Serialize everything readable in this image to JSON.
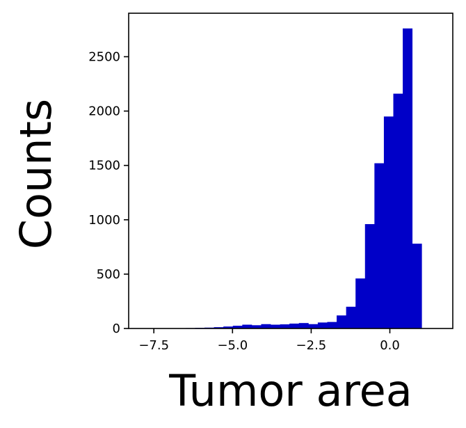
{
  "chart_data": {
    "type": "bar",
    "title": "",
    "xlabel": "Tumor area",
    "ylabel": "Counts",
    "xlim": [
      -8.3,
      2.0
    ],
    "ylim": [
      0,
      2900
    ],
    "x_ticks": [
      -7.5,
      -5.0,
      -2.5,
      0.0
    ],
    "x_tick_labels": [
      "−7.5",
      "−5.0",
      "−2.5",
      "0.0"
    ],
    "y_ticks": [
      0,
      500,
      1000,
      1500,
      2000,
      2500
    ],
    "y_tick_labels": [
      "0",
      "500",
      "1000",
      "1500",
      "2000",
      "2500"
    ],
    "bar_color": "#0000c8",
    "grid": false,
    "legend": "none",
    "bin_edges": [
      -7.99,
      -7.69,
      -7.39,
      -7.09,
      -6.79,
      -6.49,
      -6.19,
      -5.89,
      -5.59,
      -5.29,
      -4.99,
      -4.69,
      -4.39,
      -4.09,
      -3.79,
      -3.49,
      -3.19,
      -2.89,
      -2.59,
      -2.29,
      -1.99,
      -1.69,
      -1.39,
      -1.09,
      -0.79,
      -0.49,
      -0.19,
      0.11,
      0.41,
      0.71,
      1.01
    ],
    "values": [
      1,
      1,
      2,
      2,
      3,
      4,
      6,
      8,
      12,
      18,
      25,
      35,
      30,
      40,
      35,
      38,
      45,
      50,
      40,
      55,
      60,
      120,
      200,
      460,
      960,
      1520,
      1950,
      2160,
      2760,
      780
    ]
  }
}
